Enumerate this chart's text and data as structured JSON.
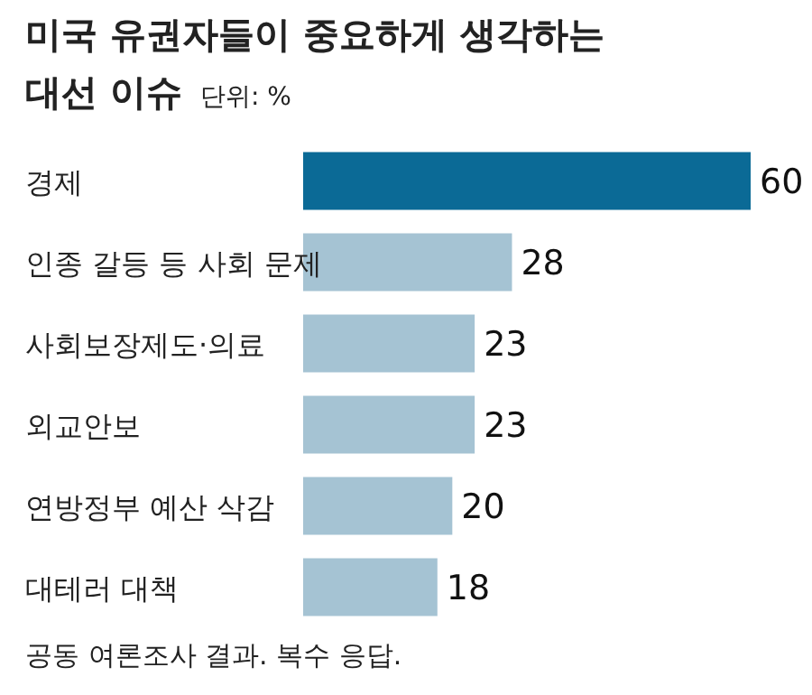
{
  "chart_data": {
    "type": "bar",
    "orientation": "horizontal",
    "title": "미국 유권자들이 중요하게 생각하는",
    "subtitle": "대선 이슈",
    "ylabel": "단위: %",
    "categories": [
      "경제",
      "인종 갈등 등 사회 문제",
      "사회보장제도·의료",
      "외교안보",
      "연방정부 예산 삭감",
      "대테러 대책"
    ],
    "values": [
      60,
      28,
      23,
      23,
      20,
      18
    ],
    "colors": [
      "#0b6a96",
      "#a5c3d3",
      "#a5c3d3",
      "#a5c3d3",
      "#a5c3d3",
      "#a5c3d3"
    ],
    "data_labels": true,
    "annotations": [
      "공동 여론조사 결과. 복수 응답."
    ]
  }
}
